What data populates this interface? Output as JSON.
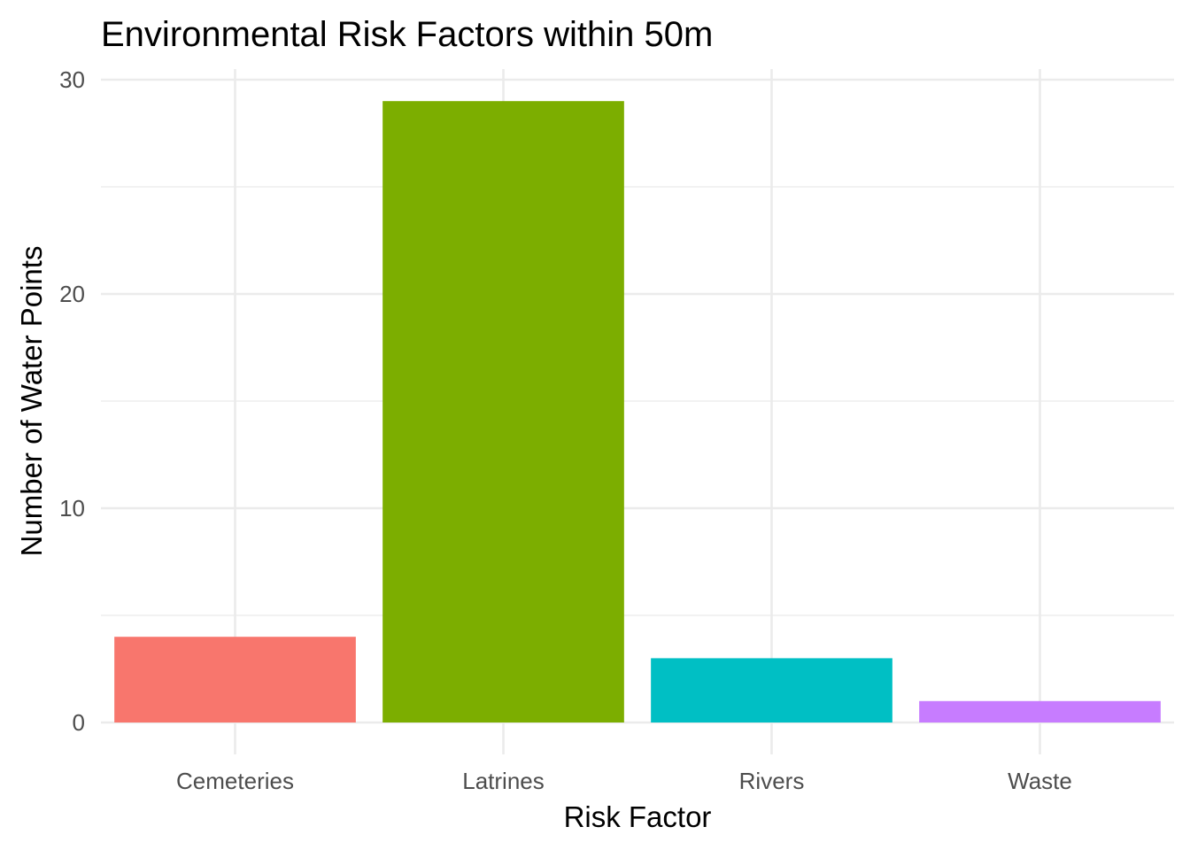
{
  "chart_data": {
    "type": "bar",
    "title": "Environmental Risk Factors within 50m",
    "xlabel": "Risk Factor",
    "ylabel": "Number of Water Points",
    "categories": [
      "Cemeteries",
      "Latrines",
      "Rivers",
      "Waste"
    ],
    "values": [
      4,
      29,
      3,
      1
    ],
    "colors": [
      "#F8766D",
      "#7CAE00",
      "#00BFC4",
      "#C77CFF"
    ],
    "ylim": [
      0,
      30
    ],
    "yticks": [
      0,
      10,
      20,
      30
    ],
    "grid": true,
    "legend": "none"
  }
}
